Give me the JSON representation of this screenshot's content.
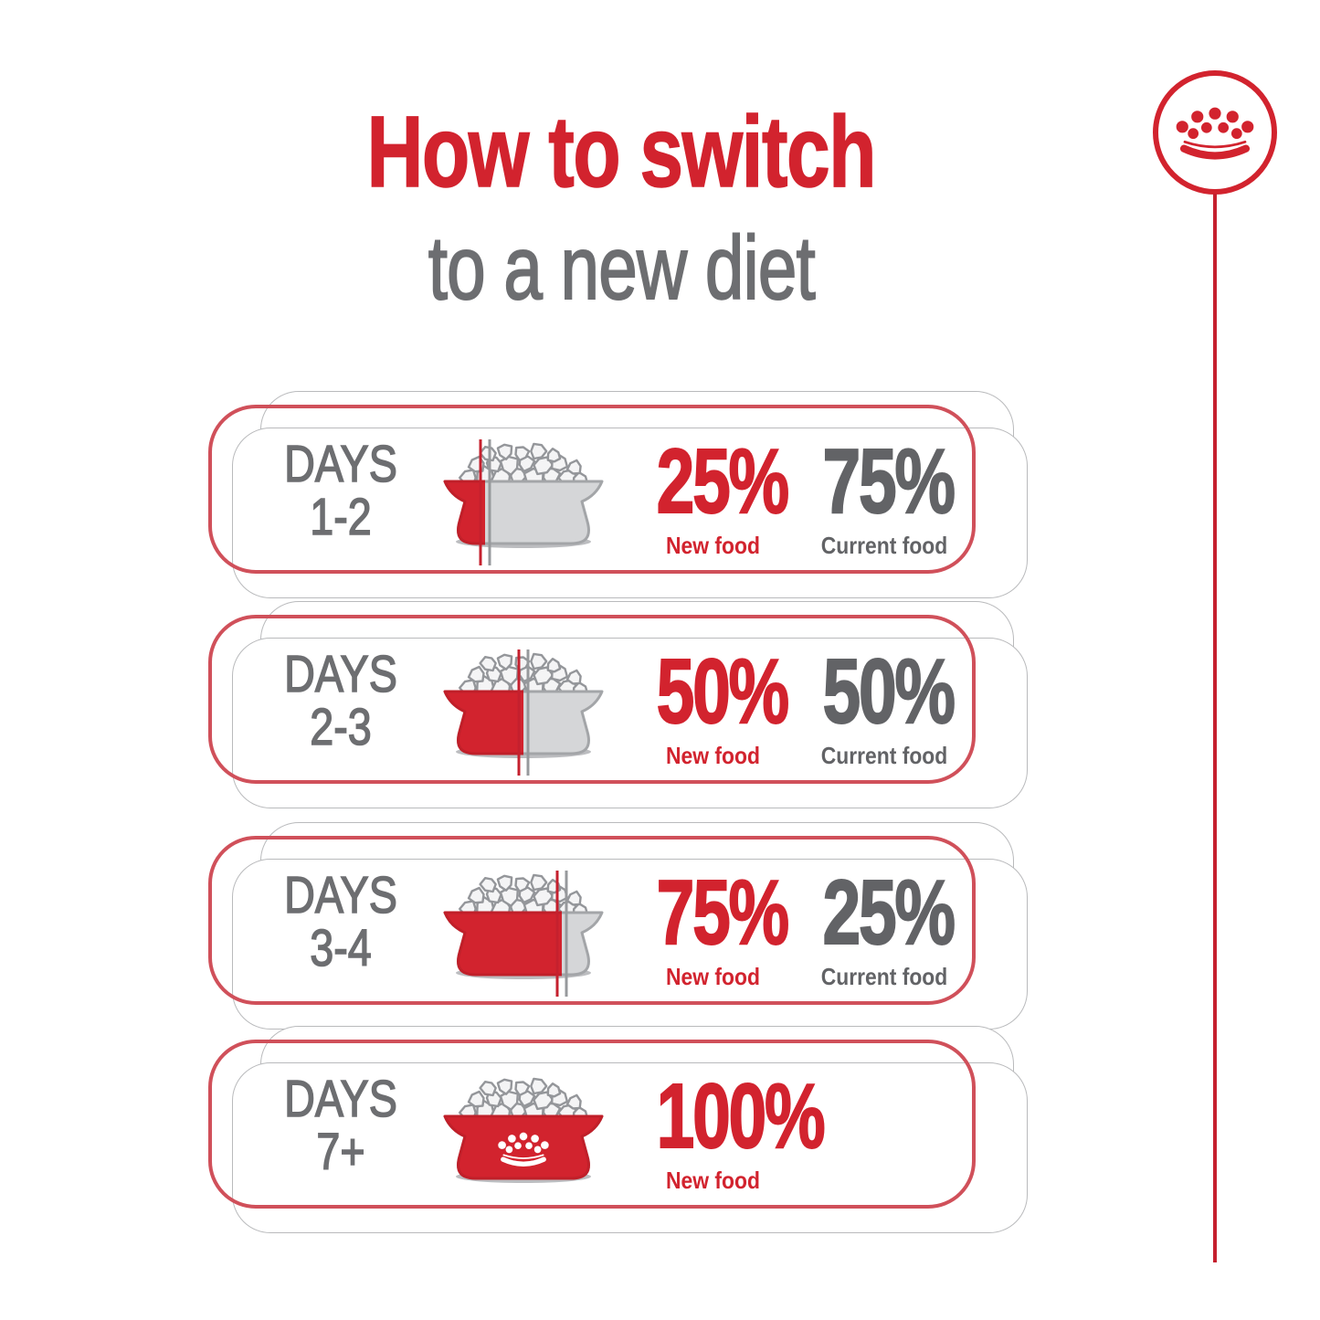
{
  "title": {
    "line1": "How to switch",
    "line2": "to a new diet"
  },
  "brand": {
    "logo_icon": "royal-canin-crown-icon"
  },
  "colors": {
    "red": "#d2232e",
    "red_dark": "#c01f29",
    "line_red": "#c5202e",
    "card_outline_red": "#d0505a",
    "gray_text": "#6d6e71",
    "dark_gray_text": "#626366",
    "card_outline_gray": "#b9babc",
    "bowl_gray": "#d5d6d8",
    "bowl_gray_edge": "#a3a5a8",
    "kibble_fill": "#f4f4f5",
    "kibble_edge": "#94969a",
    "split_line_gray": "#97999c"
  },
  "rows": [
    {
      "days_label": "DAYS",
      "days_range": "1-2",
      "bowl_fill_percent": 25,
      "new_pct": "25%",
      "new_label": "New food",
      "current_pct": "75%",
      "current_label": "Current food"
    },
    {
      "days_label": "DAYS",
      "days_range": "2-3",
      "bowl_fill_percent": 50,
      "new_pct": "50%",
      "new_label": "New food",
      "current_pct": "50%",
      "current_label": "Current food"
    },
    {
      "days_label": "DAYS",
      "days_range": "3-4",
      "bowl_fill_percent": 75,
      "new_pct": "75%",
      "new_label": "New food",
      "current_pct": "25%",
      "current_label": "Current food"
    },
    {
      "days_label": "DAYS",
      "days_range": "7+",
      "bowl_fill_percent": 100,
      "new_pct": "100%",
      "new_label": "New food",
      "current_pct": null,
      "current_label": null
    }
  ]
}
